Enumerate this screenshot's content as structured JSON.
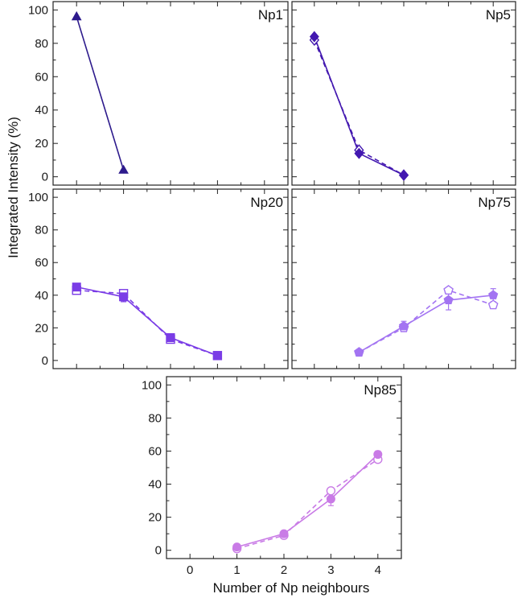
{
  "chart_data": {
    "type": "line",
    "ylabel": "Integrated Intensity (%)",
    "xlabel": "Number of Np neighbours",
    "x_ticks": [
      "0",
      "1",
      "2",
      "3",
      "4"
    ],
    "y_ticks": [
      "0",
      "20",
      "40",
      "60",
      "80",
      "100"
    ],
    "xlim": [
      -0.5,
      4.5
    ],
    "ylim": [
      -5,
      105
    ],
    "grid": false,
    "panels": [
      {
        "label": "Np1",
        "color": "#2d1a8c",
        "marker": "triangle",
        "series": [
          {
            "style": "solid",
            "filled": true,
            "x": [
              0,
              1
            ],
            "y": [
              96,
              4
            ]
          }
        ]
      },
      {
        "label": "Np5",
        "color": "#4318b0",
        "marker": "diamond",
        "series": [
          {
            "style": "solid",
            "filled": true,
            "x": [
              0,
              1,
              2
            ],
            "y": [
              84,
              14,
              1
            ]
          },
          {
            "style": "dashed",
            "filled": false,
            "x": [
              0,
              1,
              2
            ],
            "y": [
              82,
              16,
              1
            ]
          }
        ]
      },
      {
        "label": "Np20",
        "color": "#7a3ce6",
        "marker": "square",
        "series": [
          {
            "style": "solid",
            "filled": true,
            "x": [
              0,
              1,
              2,
              3
            ],
            "y": [
              45,
              39,
              14,
              3
            ],
            "yerr": [
              0,
              3,
              0,
              0
            ]
          },
          {
            "style": "dashed",
            "filled": false,
            "x": [
              0,
              1,
              2,
              3
            ],
            "y": [
              43,
              41,
              13,
              3
            ]
          }
        ]
      },
      {
        "label": "Np75",
        "color": "#a374f2",
        "marker": "pentagon",
        "series": [
          {
            "style": "solid",
            "filled": true,
            "x": [
              1,
              2,
              3,
              4
            ],
            "y": [
              5,
              21,
              37,
              40
            ],
            "yerr": [
              0,
              3,
              6,
              4
            ]
          },
          {
            "style": "dashed",
            "filled": false,
            "x": [
              1,
              2,
              3,
              4
            ],
            "y": [
              5,
              20,
              43,
              34
            ]
          }
        ]
      },
      {
        "label": "Np85",
        "color": "#c97be6",
        "marker": "circle",
        "series": [
          {
            "style": "solid",
            "filled": true,
            "x": [
              1,
              2,
              3,
              4
            ],
            "y": [
              2,
              10,
              31,
              58
            ],
            "yerr": [
              0,
              0,
              4,
              2
            ]
          },
          {
            "style": "dashed",
            "filled": false,
            "x": [
              1,
              2,
              3,
              4
            ],
            "y": [
              1,
              9,
              36,
              55
            ]
          }
        ]
      }
    ]
  }
}
